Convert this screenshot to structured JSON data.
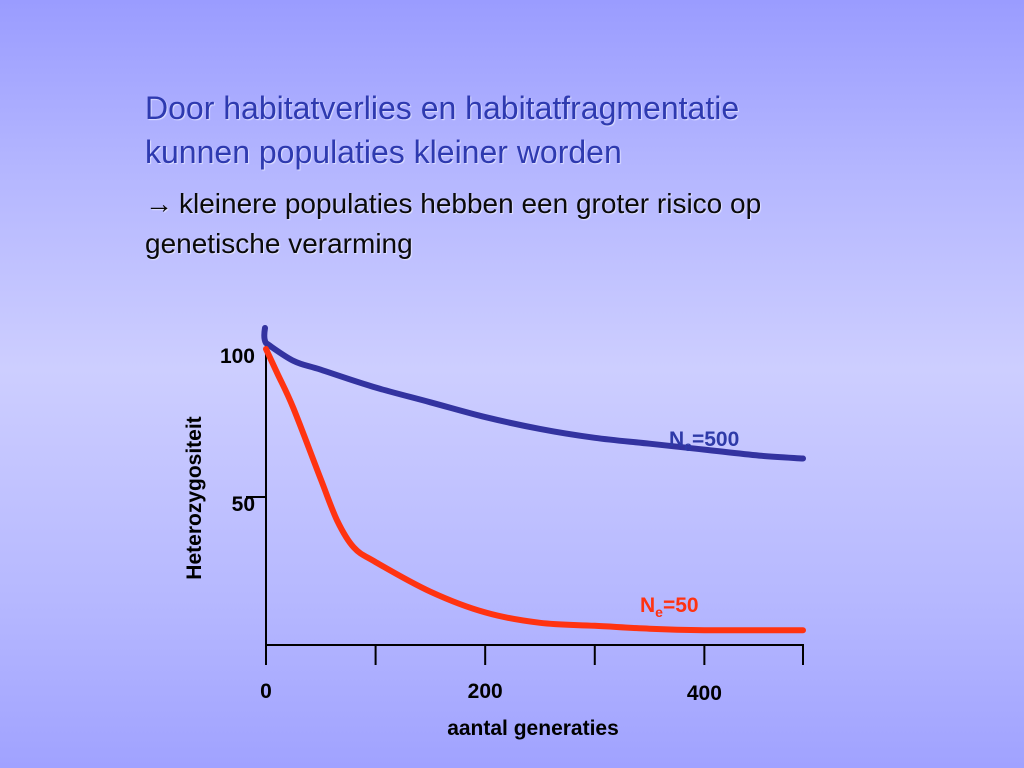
{
  "slide": {
    "title_lines": [
      "Door habitatverlies en habitatfragmentatie",
      "kunnen populaties kleiner worden"
    ],
    "subtitle_arrow": "→",
    "subtitle_lines": [
      "kleinere populaties hebben een groter risico op",
      "genetische verarming"
    ]
  },
  "chart_data": {
    "type": "line",
    "xlabel": "aantal generaties",
    "ylabel": "Heterozygositeit",
    "xlim": [
      0,
      490
    ],
    "ylim": [
      0,
      100
    ],
    "x_ticks": [
      0,
      100,
      200,
      300,
      400,
      490
    ],
    "x_tick_labels": [
      {
        "value": 0,
        "label": "0"
      },
      {
        "value": 200,
        "label": "200"
      },
      {
        "value": 400,
        "label": "400"
      }
    ],
    "y_tick_labels": [
      {
        "value": 100,
        "label": "100"
      },
      {
        "value": 50,
        "label": "50"
      }
    ],
    "grid": false,
    "series": [
      {
        "name": "Ne=500",
        "label_main": "N",
        "label_sub": "e",
        "label_rest": "=500",
        "color": "#3333a0",
        "label_color": "#2e3aa8",
        "x": [
          0,
          25,
          50,
          100,
          150,
          200,
          250,
          300,
          350,
          400,
          450,
          490
        ],
        "y": [
          102,
          96,
          93,
          87,
          82,
          77,
          73,
          70,
          68,
          66,
          64,
          63
        ]
      },
      {
        "name": "Ne=50",
        "label_main": "N",
        "label_sub": "e",
        "label_rest": "=50",
        "color": "#ff3311",
        "label_color": "#ff3311",
        "x": [
          0,
          10,
          25,
          50,
          65,
          80,
          100,
          150,
          200,
          250,
          300,
          350,
          400,
          450,
          490
        ],
        "y": [
          100,
          92,
          80,
          56,
          42,
          33,
          28,
          18,
          11,
          7.5,
          6.5,
          5.5,
          5,
          5,
          5
        ]
      }
    ]
  }
}
